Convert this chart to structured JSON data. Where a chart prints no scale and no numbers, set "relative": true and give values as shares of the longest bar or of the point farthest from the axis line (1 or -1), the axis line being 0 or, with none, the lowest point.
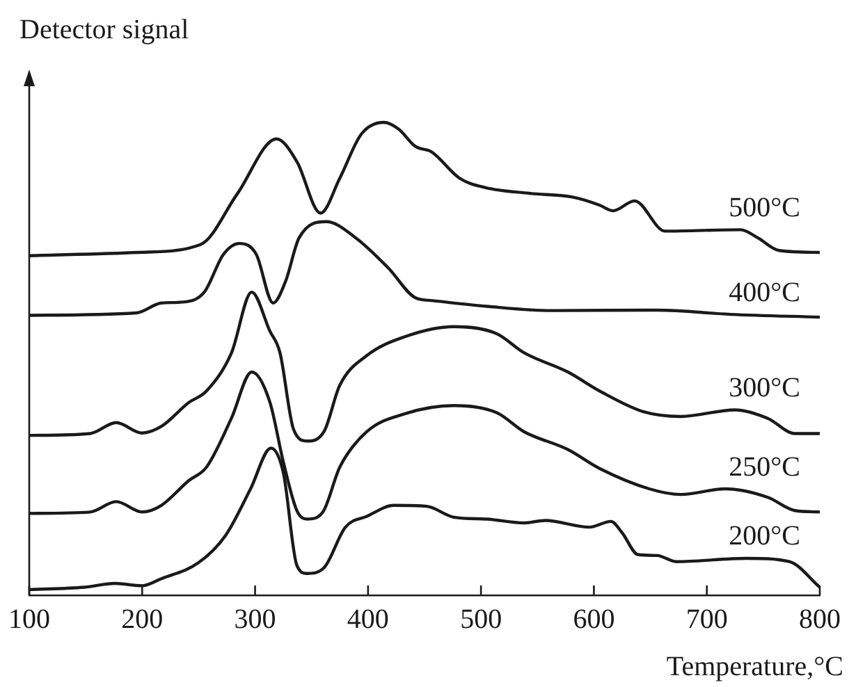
{
  "chart_data": {
    "type": "line",
    "relative": true,
    "ylabel": "Detector signal",
    "xlabel": "Temperature,°C",
    "xlim": [
      100,
      800
    ],
    "xticks": [
      100,
      200,
      300,
      400,
      500,
      600,
      700,
      800
    ],
    "grid": false,
    "legend": false,
    "marker": "none",
    "line_style": "solid",
    "series": [
      {
        "name": "500°C",
        "color": "#1a1a1a",
        "x": [
          100,
          197,
          252,
          284,
          319,
          337,
          358,
          375,
          394,
          414,
          427,
          442,
          456,
          481,
          504,
          543,
          581,
          605,
          617,
          636,
          663,
          730,
          745,
          764,
          800
        ],
        "values": [
          0.718,
          0.725,
          0.742,
          0.848,
          0.965,
          0.917,
          0.808,
          0.882,
          0.975,
          1.0,
          0.986,
          0.949,
          0.938,
          0.882,
          0.862,
          0.85,
          0.842,
          0.825,
          0.813,
          0.834,
          0.77,
          0.773,
          0.756,
          0.729,
          0.725
        ]
      },
      {
        "name": "400°C",
        "color": "#1a1a1a",
        "x": [
          100,
          195,
          217,
          236,
          255,
          272,
          286,
          301,
          316,
          327,
          339,
          363,
          389,
          418,
          442,
          457,
          505,
          562,
          656,
          721,
          800
        ],
        "values": [
          0.592,
          0.597,
          0.618,
          0.62,
          0.641,
          0.721,
          0.744,
          0.721,
          0.618,
          0.664,
          0.756,
          0.79,
          0.756,
          0.692,
          0.629,
          0.623,
          0.611,
          0.602,
          0.603,
          0.594,
          0.588
        ]
      },
      {
        "name": "300°C",
        "color": "#1a1a1a",
        "x": [
          100,
          154,
          177,
          200,
          217,
          241,
          257,
          279,
          297,
          313,
          322,
          334,
          346,
          361,
          375,
          399,
          433,
          476,
          514,
          538,
          577,
          605,
          644,
          677,
          725,
          754,
          778,
          800
        ],
        "values": [
          0.338,
          0.342,
          0.365,
          0.343,
          0.357,
          0.407,
          0.432,
          0.512,
          0.641,
          0.559,
          0.513,
          0.351,
          0.326,
          0.346,
          0.444,
          0.507,
          0.547,
          0.568,
          0.553,
          0.513,
          0.472,
          0.432,
          0.388,
          0.378,
          0.392,
          0.374,
          0.342,
          0.342
        ]
      },
      {
        "name": "250°C",
        "color": "#1a1a1a",
        "x": [
          100,
          154,
          177,
          200,
          217,
          241,
          257,
          279,
          297,
          313,
          325,
          337,
          346,
          360,
          375,
          399,
          433,
          476,
          514,
          538,
          577,
          605,
          649,
          677,
          716,
          754,
          778,
          800
        ],
        "values": [
          0.173,
          0.176,
          0.198,
          0.176,
          0.19,
          0.242,
          0.271,
          0.374,
          0.472,
          0.409,
          0.282,
          0.179,
          0.161,
          0.176,
          0.271,
          0.346,
          0.384,
          0.401,
          0.386,
          0.346,
          0.308,
          0.268,
          0.225,
          0.213,
          0.225,
          0.207,
          0.179,
          0.176
        ]
      },
      {
        "name": "200°C",
        "color": "#1a1a1a",
        "x": [
          100,
          149,
          176,
          200,
          217,
          250,
          274,
          296,
          314,
          325,
          337,
          346,
          361,
          380,
          399,
          423,
          452,
          476,
          505,
          538,
          557,
          596,
          615,
          625,
          639,
          656,
          673,
          735,
          773,
          800
        ],
        "values": [
          0.012,
          0.017,
          0.025,
          0.02,
          0.035,
          0.069,
          0.127,
          0.225,
          0.311,
          0.259,
          0.063,
          0.046,
          0.058,
          0.144,
          0.167,
          0.19,
          0.188,
          0.165,
          0.161,
          0.153,
          0.158,
          0.144,
          0.156,
          0.132,
          0.086,
          0.084,
          0.071,
          0.078,
          0.071,
          0.017
        ]
      }
    ]
  }
}
